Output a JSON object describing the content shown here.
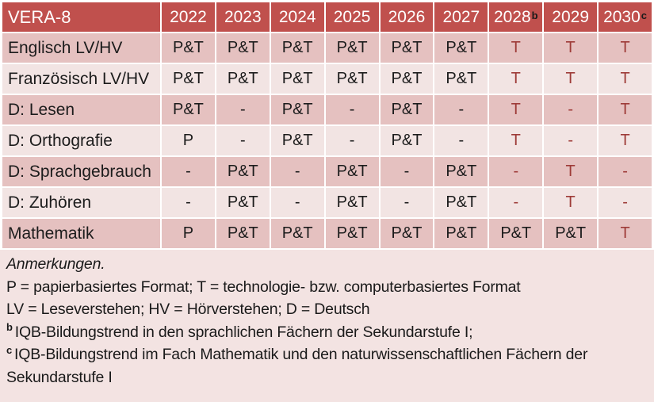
{
  "colors": {
    "header_bg": "#c0504d",
    "header_text": "#ffffff",
    "band_dark": "#e5c1c0",
    "band_light": "#f2e4e3",
    "notes_bg": "#f3e3e2",
    "accent_text": "#9e3b38"
  },
  "table": {
    "title": "VERA-8",
    "columns": [
      {
        "label": "2022",
        "sup": ""
      },
      {
        "label": "2023",
        "sup": ""
      },
      {
        "label": "2024",
        "sup": ""
      },
      {
        "label": "2025",
        "sup": ""
      },
      {
        "label": "2026",
        "sup": ""
      },
      {
        "label": "2027",
        "sup": ""
      },
      {
        "label": "2028",
        "sup": "b"
      },
      {
        "label": "2029",
        "sup": ""
      },
      {
        "label": "2030",
        "sup": "c"
      }
    ],
    "rows": [
      {
        "label": "Englisch LV/HV",
        "cells": [
          {
            "text": "P&T",
            "accent": false
          },
          {
            "text": "P&T",
            "accent": false
          },
          {
            "text": "P&T",
            "accent": false
          },
          {
            "text": "P&T",
            "accent": false
          },
          {
            "text": "P&T",
            "accent": false
          },
          {
            "text": "P&T",
            "accent": false
          },
          {
            "text": "T",
            "accent": true
          },
          {
            "text": "T",
            "accent": true
          },
          {
            "text": "T",
            "accent": true
          }
        ]
      },
      {
        "label": "Französisch LV/HV",
        "cells": [
          {
            "text": "P&T",
            "accent": false
          },
          {
            "text": "P&T",
            "accent": false
          },
          {
            "text": "P&T",
            "accent": false
          },
          {
            "text": "P&T",
            "accent": false
          },
          {
            "text": "P&T",
            "accent": false
          },
          {
            "text": "P&T",
            "accent": false
          },
          {
            "text": "T",
            "accent": true
          },
          {
            "text": "T",
            "accent": true
          },
          {
            "text": "T",
            "accent": true
          }
        ]
      },
      {
        "label": "D: Lesen",
        "cells": [
          {
            "text": "P&T",
            "accent": false
          },
          {
            "text": "-",
            "accent": false
          },
          {
            "text": "P&T",
            "accent": false
          },
          {
            "text": "-",
            "accent": false
          },
          {
            "text": "P&T",
            "accent": false
          },
          {
            "text": "-",
            "accent": false
          },
          {
            "text": "T",
            "accent": true
          },
          {
            "text": "-",
            "accent": true
          },
          {
            "text": "T",
            "accent": true
          }
        ]
      },
      {
        "label": "D: Orthografie",
        "cells": [
          {
            "text": "P",
            "accent": false
          },
          {
            "text": "-",
            "accent": false
          },
          {
            "text": "P&T",
            "accent": false
          },
          {
            "text": "-",
            "accent": false
          },
          {
            "text": "P&T",
            "accent": false
          },
          {
            "text": "-",
            "accent": false
          },
          {
            "text": "T",
            "accent": true
          },
          {
            "text": "-",
            "accent": true
          },
          {
            "text": "T",
            "accent": true
          }
        ]
      },
      {
        "label": "D: Sprachgebrauch",
        "cells": [
          {
            "text": "-",
            "accent": false
          },
          {
            "text": "P&T",
            "accent": false
          },
          {
            "text": "-",
            "accent": false
          },
          {
            "text": "P&T",
            "accent": false
          },
          {
            "text": "-",
            "accent": false
          },
          {
            "text": "P&T",
            "accent": false
          },
          {
            "text": "-",
            "accent": true
          },
          {
            "text": "T",
            "accent": true
          },
          {
            "text": "-",
            "accent": true
          }
        ]
      },
      {
        "label": "D: Zuhören",
        "cells": [
          {
            "text": "-",
            "accent": false
          },
          {
            "text": "P&T",
            "accent": false
          },
          {
            "text": "-",
            "accent": false
          },
          {
            "text": "P&T",
            "accent": false
          },
          {
            "text": "-",
            "accent": false
          },
          {
            "text": "P&T",
            "accent": false
          },
          {
            "text": "-",
            "accent": true
          },
          {
            "text": "T",
            "accent": true
          },
          {
            "text": "-",
            "accent": true
          }
        ]
      },
      {
        "label": "Mathematik",
        "cells": [
          {
            "text": "P",
            "accent": false
          },
          {
            "text": "P&T",
            "accent": false
          },
          {
            "text": "P&T",
            "accent": false
          },
          {
            "text": "P&T",
            "accent": false
          },
          {
            "text": "P&T",
            "accent": false
          },
          {
            "text": "P&T",
            "accent": false
          },
          {
            "text": "P&T",
            "accent": false
          },
          {
            "text": "P&T",
            "accent": false
          },
          {
            "text": "T",
            "accent": true
          }
        ]
      }
    ]
  },
  "notes": {
    "heading": "Anmerkungen.",
    "lines": [
      "P = papierbasiertes Format; T = technologie- bzw. computerbasiertes Format",
      "LV = Leseverstehen; HV = Hörverstehen; D = Deutsch"
    ],
    "footnotes": [
      {
        "sup": "b",
        "text": "IQB-Bildungstrend in den sprachlichen Fächern der Sekundarstufe I;"
      },
      {
        "sup": "c",
        "text": "IQB-Bildungstrend im Fach Mathematik und den naturwissenschaftlichen Fächern der Sekundarstufe I"
      }
    ]
  }
}
